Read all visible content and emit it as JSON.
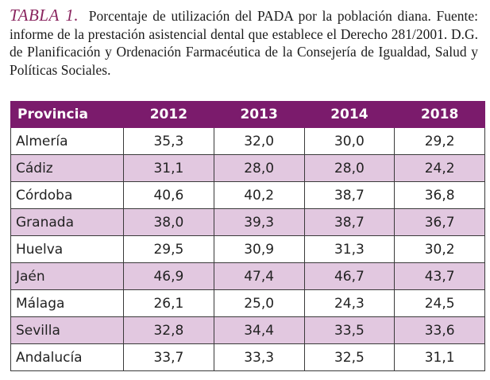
{
  "caption": {
    "label": "TABLA 1.",
    "text": "Porcentaje de utilización del PADA por la población diana. Fuente: informe de la prestación asistencial dental que establece el Derecho 281/2001. D.G. de Planificación y Ordenación Farmacéutica de la Consejería de Igualdad, Salud y Políticas Sociales."
  },
  "colors": {
    "accent": "#8a2660",
    "header_bg": "#7b1b6c",
    "row_alt_bg": "#e2c8e0"
  },
  "table": {
    "headers": [
      "Provincia",
      "2012",
      "2013",
      "2014",
      "2018"
    ],
    "rows": [
      [
        "Almería",
        "35,3",
        "32,0",
        "30,0",
        "29,2"
      ],
      [
        "Cádiz",
        "31,1",
        "28,0",
        "28,0",
        "24,2"
      ],
      [
        "Córdoba",
        "40,6",
        "40,2",
        "38,7",
        "36,8"
      ],
      [
        "Granada",
        "38,0",
        "39,3",
        "38,7",
        "36,7"
      ],
      [
        "Huelva",
        "29,5",
        "30,9",
        "31,3",
        "30,2"
      ],
      [
        "Jaén",
        "46,9",
        "47,4",
        "46,7",
        "43,7"
      ],
      [
        "Málaga",
        "26,1",
        "25,0",
        "24,3",
        "24,5"
      ],
      [
        "Sevilla",
        "32,8",
        "34,4",
        "33,5",
        "33,6"
      ],
      [
        "Andalucía",
        "33,7",
        "33,3",
        "32,5",
        "31,1"
      ]
    ]
  }
}
